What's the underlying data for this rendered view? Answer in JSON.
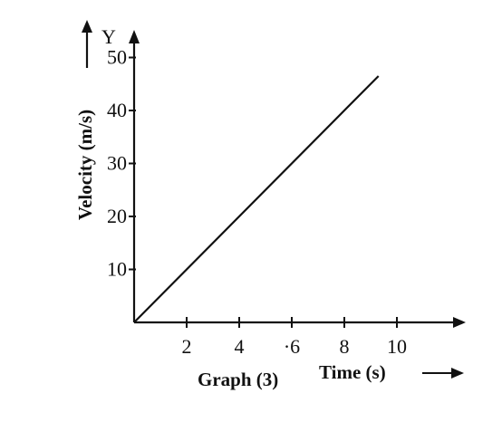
{
  "chart_data": {
    "type": "line",
    "title": "",
    "xlabel": "Time (s)",
    "ylabel": "Velocity (m/s)",
    "x_axis_letter": "",
    "y_axis_letter": "Y",
    "caption": "Graph (3)",
    "xlim": [
      0,
      12
    ],
    "ylim": [
      0,
      52
    ],
    "x_ticks": [
      2,
      4,
      6,
      8,
      10
    ],
    "x_tick_labels": [
      "2",
      "4",
      "·6",
      "8",
      "10"
    ],
    "y_ticks": [
      10,
      20,
      30,
      40,
      50
    ],
    "y_tick_labels": [
      "10",
      "20",
      "30",
      "40",
      "50"
    ],
    "grid": false,
    "legend": "none",
    "series": [
      {
        "x": [
          0,
          9.3
        ],
        "y": [
          0,
          46.5
        ]
      }
    ],
    "colors": {
      "ink": "#111111",
      "background": "#ffffff"
    }
  }
}
